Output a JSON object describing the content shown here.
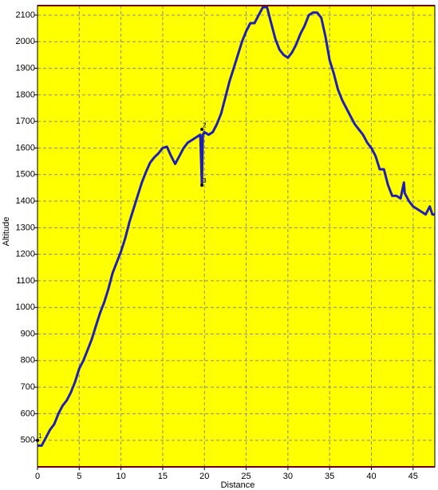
{
  "chart_data": {
    "type": "line",
    "x_label": "Distance",
    "y_label": "Altitude",
    "x": [
      0,
      0.5,
      1,
      1.5,
      2,
      2.5,
      3,
      3.5,
      4,
      4.5,
      5,
      5.5,
      6,
      6.5,
      7,
      7.5,
      8,
      8.5,
      9,
      9.5,
      10,
      10.5,
      11,
      11.5,
      12,
      12.5,
      13,
      13.5,
      14,
      14.5,
      15,
      15.5,
      16,
      16.5,
      17,
      17.5,
      18,
      18.5,
      19,
      19.5,
      19.7,
      19.8,
      20,
      20.5,
      21,
      21.5,
      22,
      22.5,
      23,
      23.5,
      24,
      24.5,
      25,
      25.5,
      26,
      26.5,
      27,
      27.5,
      28,
      28.5,
      29,
      29.5,
      30,
      30.5,
      31,
      31.5,
      32,
      32.5,
      33,
      33.5,
      34,
      34.5,
      35,
      35.5,
      36,
      36.5,
      37,
      37.5,
      38,
      38.5,
      39,
      39.5,
      40,
      40.5,
      41,
      41.5,
      42,
      42.5,
      43,
      43.5,
      43.9,
      44,
      44.5,
      45,
      45.5,
      46,
      46.5,
      47,
      47.3,
      47.6
    ],
    "series": [
      {
        "name": "Altitude",
        "color": "#2020b0",
        "values": [
          480,
          480,
          510,
          540,
          560,
          600,
          630,
          650,
          680,
          720,
          770,
          800,
          840,
          880,
          930,
          980,
          1020,
          1070,
          1130,
          1170,
          1210,
          1260,
          1320,
          1370,
          1420,
          1470,
          1510,
          1545,
          1565,
          1580,
          1600,
          1605,
          1570,
          1540,
          1570,
          1600,
          1620,
          1630,
          1640,
          1650,
          1460,
          1650,
          1660,
          1650,
          1660,
          1690,
          1730,
          1790,
          1850,
          1900,
          1950,
          2000,
          2040,
          2070,
          2070,
          2100,
          2130,
          2130,
          2070,
          2010,
          1970,
          1950,
          1940,
          1960,
          1990,
          2030,
          2060,
          2100,
          2110,
          2110,
          2090,
          2020,
          1930,
          1880,
          1820,
          1780,
          1750,
          1720,
          1690,
          1670,
          1650,
          1620,
          1600,
          1570,
          1520,
          1520,
          1460,
          1420,
          1420,
          1410,
          1470,
          1430,
          1400,
          1380,
          1370,
          1360,
          1350,
          1380,
          1350,
          1350
        ]
      }
    ],
    "annotations": [
      {
        "text": "1",
        "x": 0,
        "y": 500
      },
      {
        "text": "2",
        "x": 19.7,
        "y": 1670
      },
      {
        "text": "3",
        "x": 19.7,
        "y": 1460
      }
    ],
    "xlim": [
      0,
      47.6
    ],
    "ylim": [
      400,
      2136
    ],
    "xticks": [
      0,
      5,
      10,
      15,
      20,
      25,
      30,
      35,
      40,
      45
    ],
    "yticks": [
      500,
      600,
      700,
      800,
      900,
      1000,
      1100,
      1200,
      1300,
      1400,
      1500,
      1600,
      1700,
      1800,
      1900,
      2000,
      2100
    ],
    "background": "#ffff00",
    "grid": true
  }
}
